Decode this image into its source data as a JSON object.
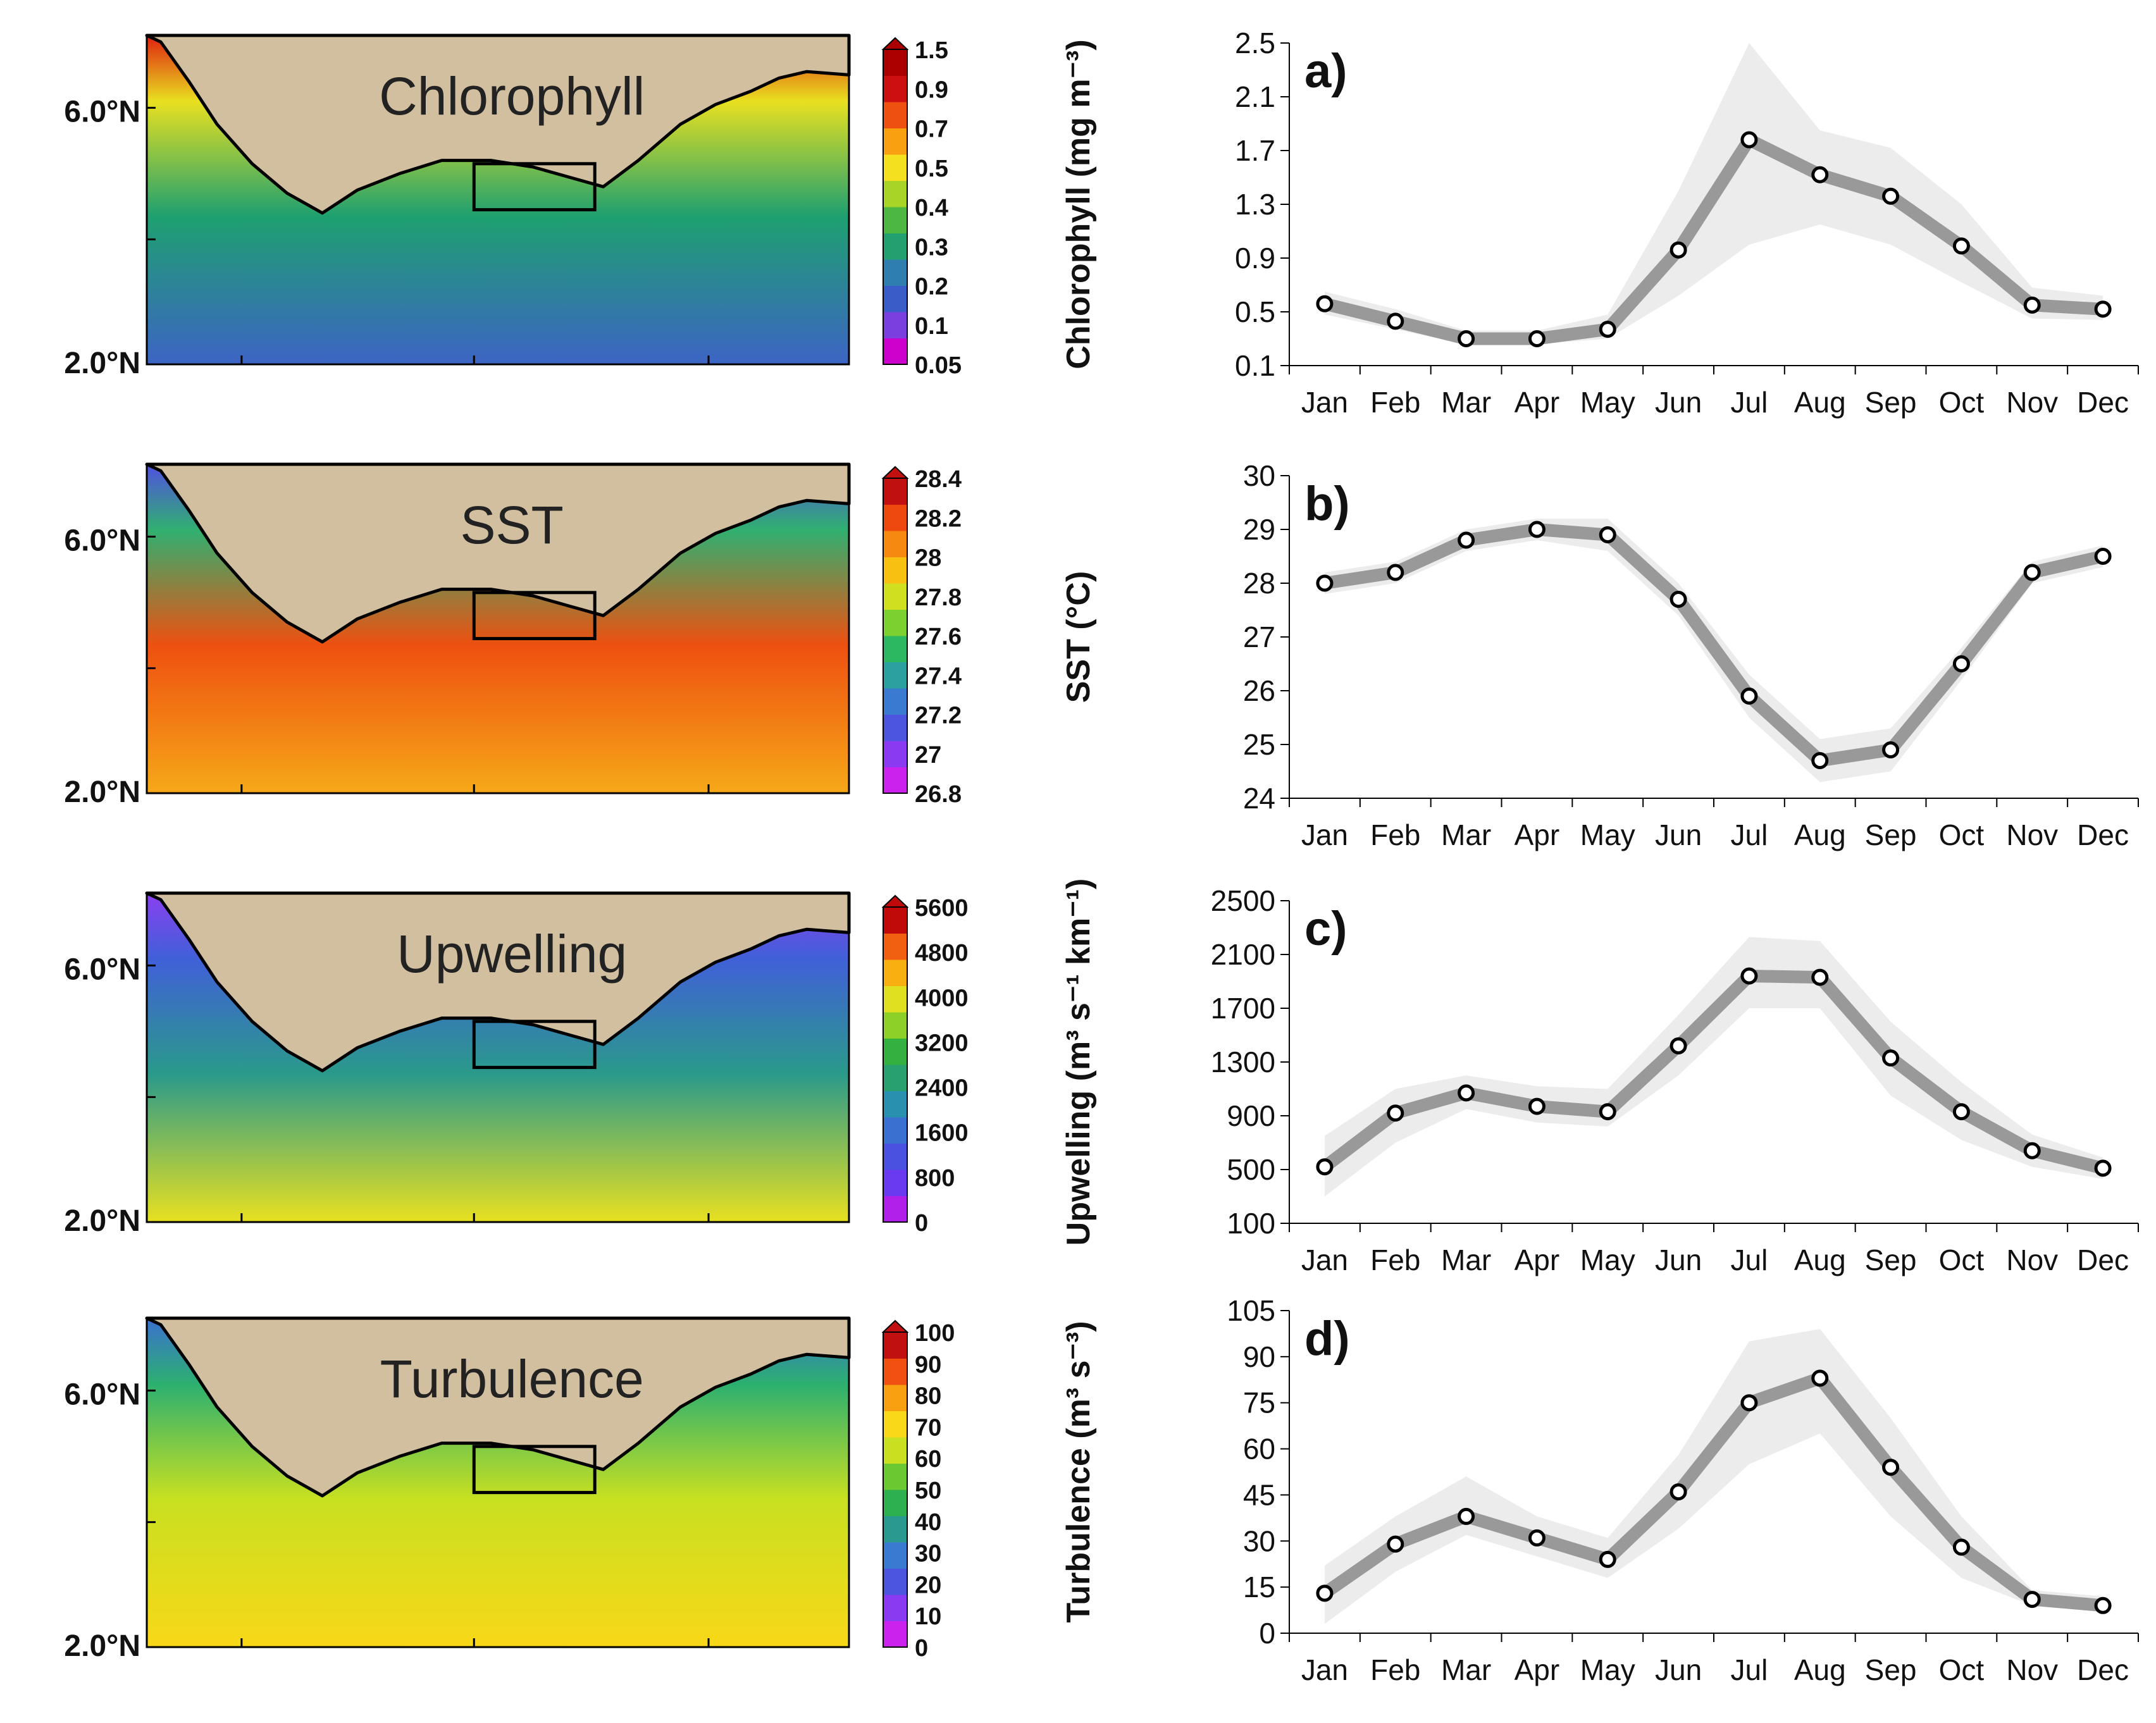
{
  "maps": [
    {
      "title": "Chlorophyll",
      "lat_labels": [
        "6.0°N",
        "2.0°N"
      ],
      "colorbar_ticks": [
        "1.5",
        "0.9",
        "0.7",
        "0.5",
        "0.4",
        "0.3",
        "0.2",
        "0.1",
        "0.05"
      ],
      "colors": [
        "#cc00cc",
        "#7b3fe0",
        "#3a5cc8",
        "#2e7fb0",
        "#22a070",
        "#4cb842",
        "#a8d428",
        "#f5e020",
        "#f8a010",
        "#ee5010",
        "#cc1010",
        "#aa0000"
      ],
      "fill": {
        "deep": "#3c64c4",
        "mid": "#1ea070",
        "near": "#e8e020",
        "coast": "#e02010"
      }
    },
    {
      "title": "SST",
      "lat_labels": [
        "6.0°N",
        "2.0°N"
      ],
      "colorbar_ticks": [
        "28.4",
        "28.2",
        "28",
        "27.8",
        "27.6",
        "27.4",
        "27.2",
        "27",
        "26.8"
      ],
      "colors": [
        "#cc22ee",
        "#8a3af0",
        "#4c55e0",
        "#3a7ad0",
        "#2aa0a0",
        "#2cb860",
        "#7cd030",
        "#d0e020",
        "#f8c010",
        "#f68a10",
        "#ee4a10",
        "#c01010"
      ],
      "fill": {
        "deep": "#f6a818",
        "mid": "#ee5010",
        "near": "#30b070",
        "coast": "#5050e0"
      }
    },
    {
      "title": "Upwelling",
      "lat_labels": [
        "6.0°N",
        "2.0°N"
      ],
      "colorbar_ticks": [
        "5600",
        "4800",
        "4000",
        "3200",
        "2400",
        "1600",
        "800",
        "0"
      ],
      "colors": [
        "#b020e8",
        "#6a3af0",
        "#4a50e0",
        "#3a70d0",
        "#2a90b0",
        "#28a070",
        "#34b040",
        "#8cd028",
        "#e0e020",
        "#f8b010",
        "#f06010",
        "#c00a0a"
      ],
      "fill": {
        "deep": "#e8e020",
        "mid": "#2a9a8a",
        "near": "#4060d8",
        "coast": "#8a40f0"
      }
    },
    {
      "title": "Turbulence",
      "lat_labels": [
        "6.0°N",
        "2.0°N"
      ],
      "colorbar_ticks": [
        "100",
        "90",
        "80",
        "70",
        "60",
        "50",
        "40",
        "30",
        "20",
        "10",
        "0"
      ],
      "colors": [
        "#cc22ee",
        "#8a3af0",
        "#4c55e0",
        "#3a7ad0",
        "#2a9a90",
        "#2cb050",
        "#6cc830",
        "#c8e020",
        "#f8d818",
        "#f8a010",
        "#f05010",
        "#c01010"
      ],
      "fill": {
        "deep": "#f8d818",
        "mid": "#c8e020",
        "near": "#2cb070",
        "coast": "#3a70d0"
      }
    }
  ],
  "chart_data": [
    {
      "type": "line",
      "panel_label": "a)",
      "ylabel": "Chlorophyll (mg m⁻³)",
      "categories": [
        "Jan",
        "Feb",
        "Mar",
        "Apr",
        "May",
        "Jun",
        "Jul",
        "Aug",
        "Sep",
        "Oct",
        "Nov",
        "Dec"
      ],
      "values": [
        0.56,
        0.43,
        0.3,
        0.3,
        0.37,
        0.96,
        1.78,
        1.52,
        1.36,
        0.99,
        0.55,
        0.52
      ],
      "band_low": [
        0.48,
        0.37,
        0.26,
        0.26,
        0.3,
        0.62,
        1.0,
        1.15,
        1.0,
        0.72,
        0.45,
        0.44
      ],
      "band_high": [
        0.65,
        0.52,
        0.36,
        0.36,
        0.48,
        1.4,
        2.5,
        1.85,
        1.72,
        1.3,
        0.68,
        0.62
      ],
      "ylim": [
        0.1,
        2.5
      ],
      "yticks": [
        "0.1",
        "0.5",
        "0.9",
        "1.3",
        "1.7",
        "2.1",
        "2.5"
      ]
    },
    {
      "type": "line",
      "panel_label": "b)",
      "ylabel": "SST (°C)",
      "categories": [
        "Jan",
        "Feb",
        "Mar",
        "Apr",
        "May",
        "Jun",
        "Jul",
        "Aug",
        "Sep",
        "Oct",
        "Nov",
        "Dec"
      ],
      "values": [
        28.0,
        28.2,
        28.8,
        29.0,
        28.9,
        27.7,
        25.9,
        24.7,
        24.9,
        26.5,
        28.2,
        28.5
      ],
      "band_low": [
        27.8,
        28.0,
        28.6,
        28.8,
        28.6,
        27.4,
        25.5,
        24.3,
        24.5,
        26.2,
        28.0,
        28.3
      ],
      "band_high": [
        28.2,
        28.4,
        29.0,
        29.2,
        29.2,
        28.0,
        26.3,
        25.1,
        25.3,
        26.8,
        28.4,
        28.7
      ],
      "ylim": [
        24,
        30
      ],
      "yticks": [
        "24",
        "25",
        "26",
        "27",
        "28",
        "29",
        "30"
      ]
    },
    {
      "type": "line",
      "panel_label": "c)",
      "ylabel": "Upwelling (m³ s⁻¹ km⁻¹)",
      "categories": [
        "Jan",
        "Feb",
        "Mar",
        "Apr",
        "May",
        "Jun",
        "Jul",
        "Aug",
        "Sep",
        "Oct",
        "Nov",
        "Dec"
      ],
      "values": [
        520,
        920,
        1070,
        970,
        930,
        1420,
        1940,
        1930,
        1330,
        930,
        640,
        510
      ],
      "band_low": [
        300,
        700,
        950,
        850,
        820,
        1200,
        1700,
        1700,
        1050,
        720,
        520,
        430
      ],
      "band_high": [
        750,
        1100,
        1200,
        1120,
        1100,
        1650,
        2230,
        2200,
        1600,
        1150,
        760,
        590
      ],
      "ylim": [
        100,
        2500
      ],
      "yticks": [
        "100",
        "500",
        "900",
        "1300",
        "1700",
        "2100",
        "2500"
      ]
    },
    {
      "type": "line",
      "panel_label": "d)",
      "ylabel": "Turbulence (m³ s⁻³)",
      "categories": [
        "Jan",
        "Feb",
        "Mar",
        "Apr",
        "May",
        "Jun",
        "Jul",
        "Aug",
        "Sep",
        "Oct",
        "Nov",
        "Dec"
      ],
      "values": [
        13,
        29,
        38,
        31,
        24,
        46,
        75,
        83,
        54,
        28,
        11,
        9
      ],
      "band_low": [
        3,
        20,
        32,
        25,
        18,
        34,
        55,
        65,
        38,
        18,
        9,
        7
      ],
      "band_high": [
        22,
        38,
        51,
        38,
        31,
        58,
        95,
        99,
        70,
        38,
        14,
        12
      ],
      "ylim": [
        0,
        105
      ],
      "yticks": [
        "0",
        "15",
        "30",
        "45",
        "60",
        "75",
        "90",
        "105"
      ]
    }
  ]
}
